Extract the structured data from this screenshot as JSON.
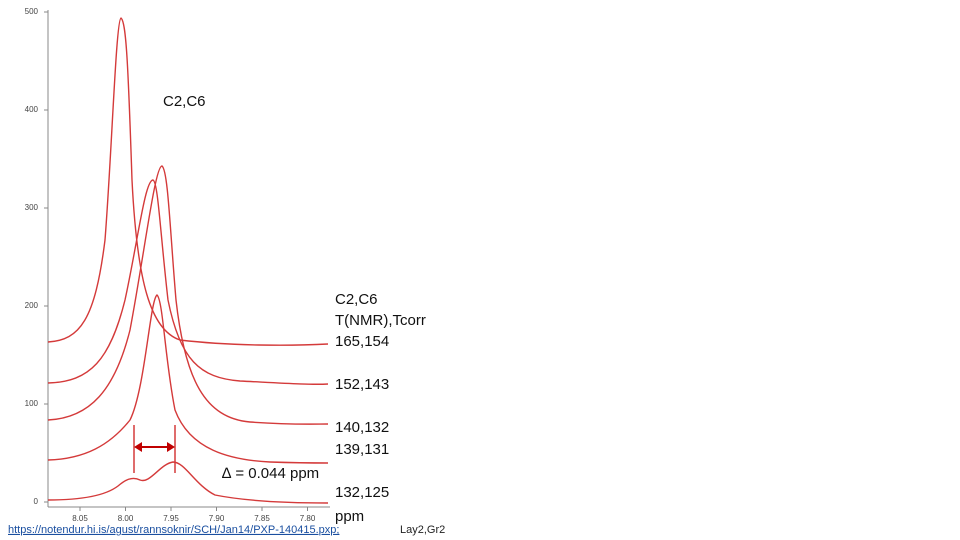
{
  "plot": {
    "y_ticks": [
      "500",
      "400",
      "300",
      "200",
      "100",
      "0"
    ],
    "x_ticks": [
      "8.05",
      "8.00",
      "7.95",
      "7.90",
      "7.85",
      "7.80"
    ],
    "peak_label": "C2,C6",
    "delta_label": "∆ = 0.044 ppm"
  },
  "legend": {
    "lines": [
      "C2,C6",
      "T(NMR),Tcorr",
      "165,154"
    ],
    "labels": [
      "152,143",
      "140,132",
      "139,131",
      "132,125",
      "ppm"
    ]
  },
  "footer": {
    "link": "https://notendur.hi.is/agust/rannsoknir/SCH/Jan14/PXP-140415.pxp;",
    "note": "Lay2,Gr2"
  }
}
